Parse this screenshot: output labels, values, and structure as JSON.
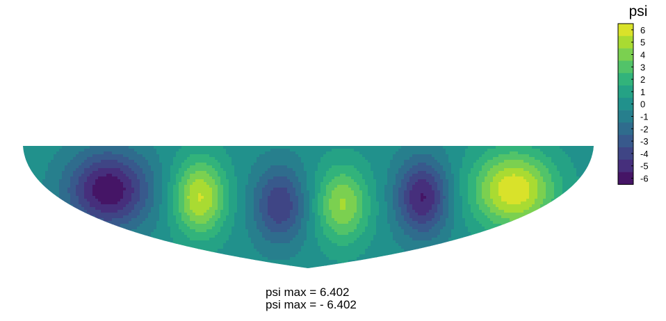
{
  "chart_data": {
    "type": "heatmap",
    "title": "",
    "colorbar": {
      "label": "psi",
      "ticks": [
        6,
        5,
        4,
        3,
        2,
        1,
        0,
        -1,
        -2,
        -3,
        -4,
        -5,
        -6
      ],
      "range": [
        -6.5,
        6.5
      ],
      "colormap": "viridis"
    },
    "field": "psi",
    "vortices": [
      {
        "x": 0.15,
        "y": 0.36,
        "peak": -6.4
      },
      {
        "x": 0.31,
        "y": 0.42,
        "peak": 5.6
      },
      {
        "x": 0.45,
        "y": 0.48,
        "peak": -4.4
      },
      {
        "x": 0.56,
        "y": 0.48,
        "peak": 4.6
      },
      {
        "x": 0.7,
        "y": 0.42,
        "peak": -5.6
      },
      {
        "x": 0.86,
        "y": 0.36,
        "peak": 6.4
      }
    ],
    "psi_max": "6.402",
    "psi_min": "- 6.402"
  },
  "captions": {
    "max": "psi max = 6.402",
    "min": "psi max = - 6.402"
  },
  "colors": {
    "viridis": [
      "#440154",
      "#472d7b",
      "#3b528b",
      "#2c728e",
      "#21918c",
      "#28ae80",
      "#5ec962",
      "#addc30",
      "#fde725"
    ]
  }
}
